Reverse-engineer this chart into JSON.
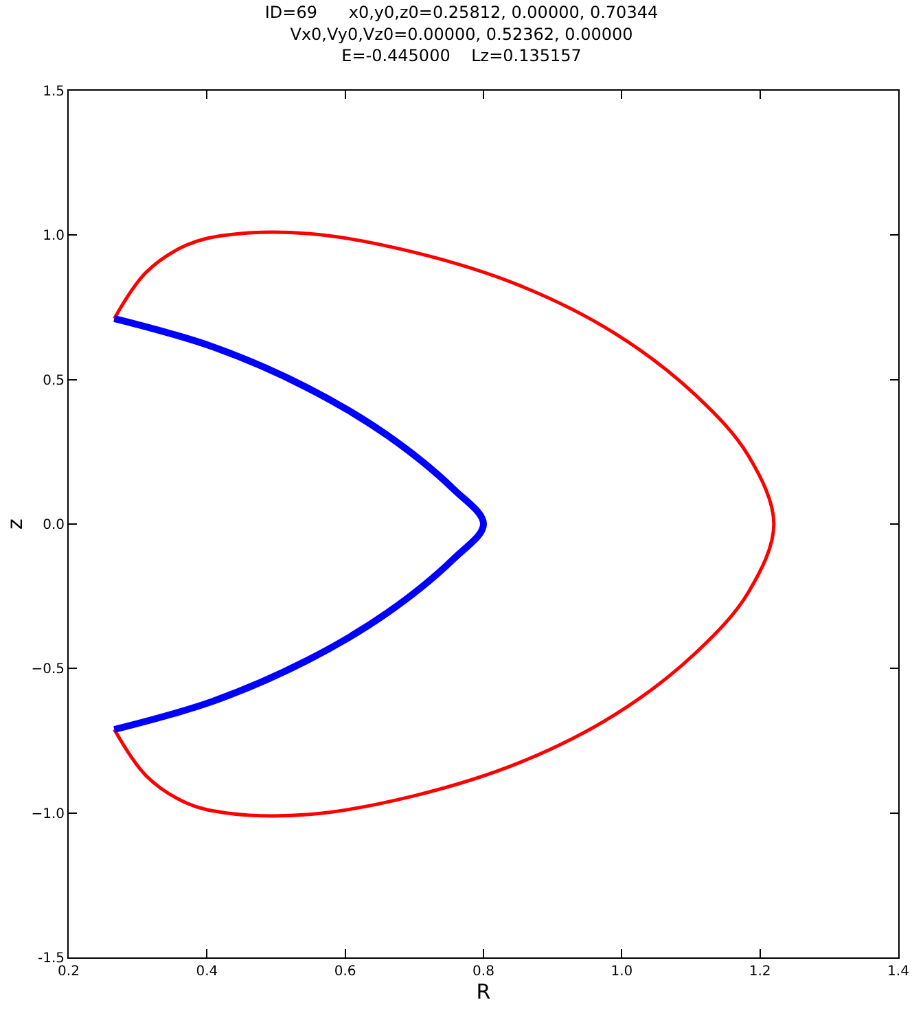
{
  "chart_data": {
    "type": "line",
    "title": "ID=69      x0,y0,z0=0.25812, 0.00000, 0.70344\nVx0,Vy0,Vz0=0.00000, 0.52362, 0.00000\nE=-0.445000    Lz=0.135157",
    "xlabel": "R",
    "ylabel": "z",
    "series": [
      {
        "color": "#ff0000",
        "x": [
          0.266,
          0.312,
          0.37,
          0.428,
          0.548,
          0.699,
          0.854,
          0.99,
          1.106,
          1.183,
          1.22,
          1.183,
          1.106,
          0.99,
          0.854,
          0.699,
          0.548,
          0.428,
          0.37,
          0.312,
          0.266
        ],
        "values": [
          0.711,
          0.871,
          0.965,
          1.0,
          1.005,
          0.941,
          0.824,
          0.66,
          0.448,
          0.237,
          0,
          -0.237,
          -0.448,
          -0.66,
          -0.824,
          -0.941,
          -1.005,
          -1.0,
          -0.965,
          -0.871,
          -0.711
        ]
      },
      {
        "color": "#0000ff",
        "x": [
          0.266,
          0.409,
          0.545,
          0.661,
          0.757,
          0.8,
          0.757,
          0.661,
          0.545,
          0.409,
          0.266
        ],
        "values": [
          0.711,
          0.613,
          0.472,
          0.307,
          0.12,
          0,
          -0.12,
          -0.307,
          -0.472,
          -0.613,
          -0.711
        ]
      }
    ],
    "xlim": [
      0.2,
      1.4
    ],
    "xticks": [
      0.2,
      0.4,
      0.6,
      0.8,
      {
        "value": 1,
        "label": "1.0"
      },
      1.2,
      1.4
    ],
    "ylim": [
      -1.5,
      1.5
    ],
    "yticks": [
      -1.5,
      {
        "value": -1,
        "label": "−1.0"
      },
      {
        "value": -0.5,
        "label": "−0.5"
      },
      {
        "value": 0,
        "label": "0.0"
      },
      0.5,
      {
        "value": 1,
        "label": "1.0"
      },
      1.5
    ],
    "marker": "none",
    "line_style": "solid"
  }
}
